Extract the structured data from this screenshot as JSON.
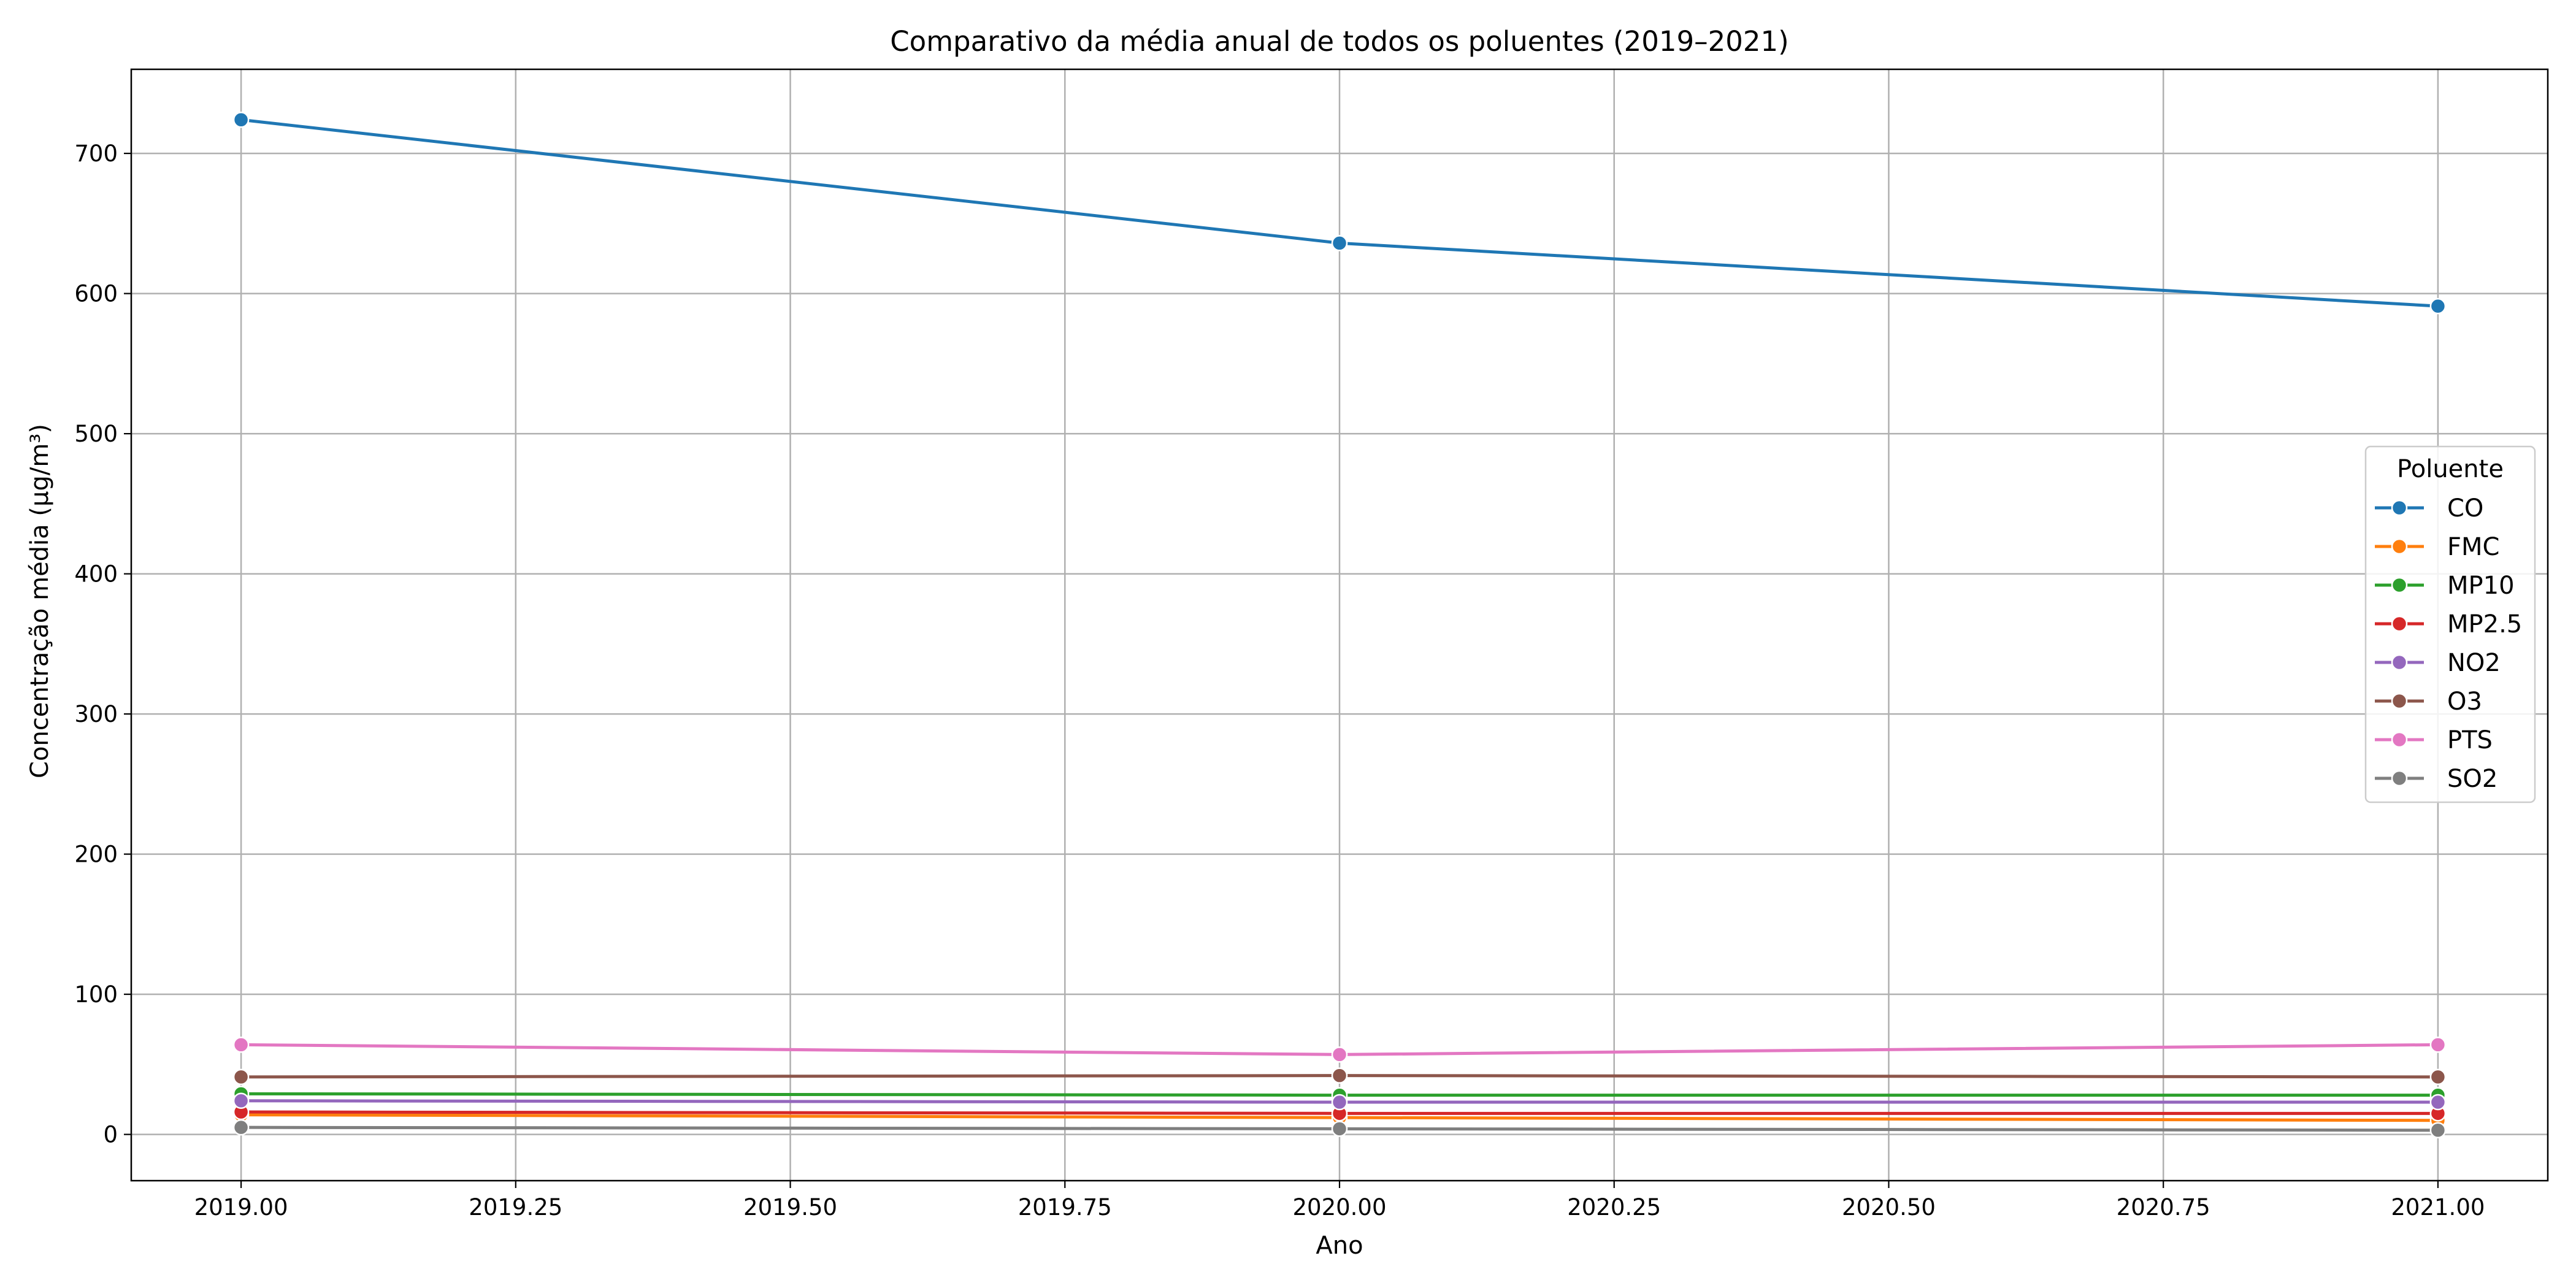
{
  "chart_data": {
    "type": "line",
    "title": "Comparativo da média anual de todos os poluentes (2019–2021)",
    "xlabel": "Ano",
    "ylabel": "Concentração média (µg/m³)",
    "xlim": [
      2018.9,
      2021.1
    ],
    "ylim": [
      -33,
      760
    ],
    "xticks": [
      2019.0,
      2019.25,
      2019.5,
      2019.75,
      2020.0,
      2020.25,
      2020.5,
      2020.75,
      2021.0
    ],
    "xtick_labels": [
      "2019.00",
      "2019.25",
      "2019.50",
      "2019.75",
      "2020.00",
      "2020.25",
      "2020.50",
      "2020.75",
      "2021.00"
    ],
    "yticks": [
      0,
      100,
      200,
      300,
      400,
      500,
      600,
      700
    ],
    "ytick_labels": [
      "0",
      "100",
      "200",
      "300",
      "400",
      "500",
      "600",
      "700"
    ],
    "grid": true,
    "legend": {
      "title": "Poluente",
      "placement": "center-right"
    },
    "x": [
      2019,
      2020,
      2021
    ],
    "series": [
      {
        "name": "CO",
        "color": "#1f77b4",
        "values": [
          724,
          636,
          591
        ]
      },
      {
        "name": "FMC",
        "color": "#ff7f0e",
        "values": [
          14,
          12,
          10
        ]
      },
      {
        "name": "MP10",
        "color": "#2ca02c",
        "values": [
          29,
          28,
          28
        ]
      },
      {
        "name": "MP2.5",
        "color": "#d62728",
        "values": [
          16,
          15,
          15
        ]
      },
      {
        "name": "NO2",
        "color": "#9467bd",
        "values": [
          24,
          23,
          23
        ]
      },
      {
        "name": "O3",
        "color": "#8c564b",
        "values": [
          41,
          42,
          41
        ]
      },
      {
        "name": "PTS",
        "color": "#e377c2",
        "values": [
          64,
          57,
          64
        ]
      },
      {
        "name": "SO2",
        "color": "#7f7f7f",
        "values": [
          5,
          4,
          3
        ]
      }
    ]
  }
}
